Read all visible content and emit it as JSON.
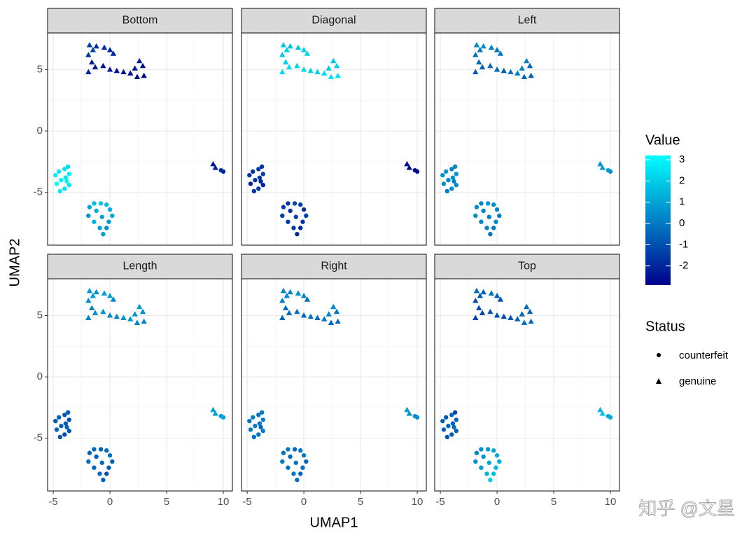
{
  "chart_data": {
    "type": "scatter",
    "x_label": "UMAP1",
    "y_label": "UMAP2",
    "xlim": [
      -5.5,
      10.8
    ],
    "ylim": [
      -9.3,
      8.0
    ],
    "xticks": [
      -5,
      0,
      5,
      10
    ],
    "yticks": [
      -5,
      0,
      5
    ],
    "grid": true,
    "x": [
      -1.8,
      -1.5,
      -1.9,
      -1.2,
      -0.5,
      0,
      0.3,
      -1.6,
      -1.9,
      -1.3,
      -0.6,
      0,
      0.6,
      1.2,
      1.8,
      2.2,
      2.6,
      2.9,
      3.0,
      2.4,
      -4.8,
      -4.5,
      -4.0,
      -3.7,
      -3.6,
      -3.8,
      -3.6,
      -4.0,
      -4.4,
      -4.7,
      -4.3,
      -3.9,
      -1.8,
      -1.4,
      -0.8,
      -0.3,
      0,
      0.2,
      -0.1,
      -0.3,
      -0.6,
      -0.9,
      -1.4,
      -1.9,
      -1.2,
      -0.7,
      9.1,
      9.3,
      9.8,
      10.0
    ],
    "y": [
      7.0,
      6.6,
      6.2,
      6.9,
      6.8,
      6.6,
      6.3,
      5.6,
      4.8,
      5.2,
      5.3,
      5.0,
      4.9,
      4.8,
      4.7,
      5.1,
      5.7,
      5.3,
      4.5,
      4.4,
      -3.6,
      -3.3,
      -3.1,
      -2.9,
      -3.5,
      -4.1,
      -4.4,
      -4.7,
      -4.9,
      -4.3,
      -4.0,
      -3.8,
      -6.2,
      -5.9,
      -5.9,
      -6.0,
      -6.4,
      -6.9,
      -7.4,
      -7.9,
      -8.4,
      -7.9,
      -7.4,
      -6.9,
      -6.5,
      -7.0,
      -2.7,
      -3.0,
      -3.2,
      -3.3
    ],
    "status": [
      "genuine",
      "genuine",
      "genuine",
      "genuine",
      "genuine",
      "genuine",
      "genuine",
      "genuine",
      "genuine",
      "genuine",
      "genuine",
      "genuine",
      "genuine",
      "genuine",
      "genuine",
      "genuine",
      "genuine",
      "genuine",
      "genuine",
      "genuine",
      "counterfeit",
      "counterfeit",
      "counterfeit",
      "counterfeit",
      "counterfeit",
      "counterfeit",
      "counterfeit",
      "counterfeit",
      "counterfeit",
      "counterfeit",
      "counterfeit",
      "counterfeit",
      "counterfeit",
      "counterfeit",
      "counterfeit",
      "counterfeit",
      "counterfeit",
      "counterfeit",
      "counterfeit",
      "counterfeit",
      "counterfeit",
      "counterfeit",
      "counterfeit",
      "counterfeit",
      "counterfeit",
      "counterfeit",
      "genuine",
      "genuine",
      "counterfeit",
      "counterfeit"
    ],
    "facets": [
      {
        "title": "Bottom",
        "values": [
          -1.5,
          -1.3,
          -1.6,
          -1.8,
          -1.7,
          -1.9,
          -2.0,
          -2.1,
          -2.2,
          -2.3,
          -2.4,
          -2.3,
          -2.5,
          -2.4,
          -2.6,
          -2.3,
          -2.2,
          -2.5,
          -2.6,
          -2.7,
          2.8,
          2.6,
          2.5,
          2.4,
          2.9,
          3.0,
          2.7,
          2.6,
          2.8,
          3.1,
          2.9,
          2.7,
          1.0,
          1.5,
          1.8,
          1.6,
          1.3,
          1.2,
          0.8,
          0.6,
          0.9,
          1.1,
          1.4,
          0.7,
          1.2,
          1.0,
          -2.4,
          -2.2,
          -1.9,
          -2.0
        ]
      },
      {
        "title": "Diagonal",
        "values": [
          1.8,
          2.0,
          1.9,
          1.7,
          1.9,
          2.1,
          2.2,
          2.0,
          2.3,
          2.4,
          2.2,
          2.3,
          2.1,
          2.0,
          2.4,
          1.9,
          1.8,
          2.2,
          2.5,
          2.4,
          -1.6,
          -1.8,
          -1.5,
          -1.7,
          -1.4,
          -1.9,
          -2.0,
          -1.6,
          -1.8,
          -2.1,
          -1.7,
          -1.5,
          -1.4,
          -1.6,
          -1.2,
          -1.5,
          -1.8,
          -1.3,
          -1.7,
          -2.0,
          -1.9,
          -1.5,
          -1.6,
          -1.4,
          -1.7,
          -1.3,
          -2.5,
          -2.6,
          -2.8,
          -2.7
        ]
      },
      {
        "title": "Left",
        "values": [
          0.3,
          0.1,
          -0.2,
          0.4,
          0.2,
          -0.1,
          0.0,
          -0.5,
          -0.8,
          -0.6,
          -0.3,
          -0.4,
          -0.7,
          -0.2,
          0.1,
          0.3,
          0.2,
          -0.4,
          -0.6,
          -0.5,
          0.5,
          0.6,
          0.3,
          0.4,
          0.7,
          0.2,
          0.5,
          0.6,
          0.1,
          0.4,
          0.3,
          0.5,
          0.4,
          0.2,
          0.6,
          0.5,
          0.3,
          0.1,
          0.4,
          0.0,
          -0.2,
          0.3,
          0.2,
          0.5,
          0.4,
          0.1,
          0.7,
          0.8,
          0.9,
          0.6
        ]
      },
      {
        "title": "Length",
        "values": [
          0.7,
          0.9,
          0.5,
          0.6,
          0.8,
          1.0,
          0.4,
          0.3,
          0.2,
          0.5,
          0.6,
          0.4,
          0.3,
          0.5,
          0.7,
          0.6,
          0.8,
          0.5,
          0.2,
          0.3,
          -0.8,
          -0.6,
          -0.9,
          -0.7,
          -1.0,
          -0.5,
          -0.8,
          -1.1,
          -0.9,
          -0.6,
          -0.7,
          -0.8,
          -0.5,
          -0.3,
          -0.6,
          -0.4,
          -0.2,
          -0.5,
          -0.7,
          -0.9,
          -0.6,
          -0.4,
          -0.5,
          -0.3,
          -0.6,
          -0.4,
          1.0,
          0.9,
          0.8,
          1.1
        ]
      },
      {
        "title": "Right",
        "values": [
          0.2,
          0.4,
          0.1,
          0.3,
          0.5,
          0.2,
          -0.1,
          -0.3,
          -0.6,
          -0.4,
          -0.2,
          -0.5,
          -0.3,
          -0.4,
          -0.1,
          0.3,
          0.4,
          -0.2,
          -0.3,
          -0.4,
          -0.1,
          0.1,
          -0.2,
          0.0,
          0.2,
          -0.3,
          0.1,
          -0.1,
          -0.2,
          0.0,
          0.1,
          -0.1,
          -0.2,
          0.1,
          -0.3,
          -0.1,
          0.0,
          -0.4,
          -0.2,
          -0.5,
          -0.3,
          -0.1,
          -0.2,
          0.0,
          -0.3,
          -0.1,
          0.8,
          0.7,
          0.6,
          0.5
        ]
      },
      {
        "title": "Top",
        "values": [
          -0.5,
          -0.8,
          -1.0,
          -0.6,
          -0.3,
          -0.7,
          -0.9,
          -1.1,
          -1.3,
          -1.2,
          -0.9,
          -1.0,
          -1.2,
          -0.8,
          -0.7,
          -0.5,
          -0.4,
          -0.6,
          -0.3,
          -0.2,
          -0.6,
          -0.8,
          -0.4,
          -1.2,
          -0.5,
          -0.3,
          -0.6,
          -0.7,
          -0.9,
          -0.5,
          -0.4,
          -0.6,
          0.3,
          0.6,
          0.8,
          1.0,
          1.2,
          1.3,
          1.5,
          1.7,
          1.9,
          1.4,
          0.9,
          0.5,
          0.7,
          1.1,
          1.5,
          1.7,
          1.3,
          1.2
        ]
      }
    ],
    "color_legend": {
      "title": "Value",
      "clim": [
        -2.9,
        3.2
      ],
      "ticks": [
        3,
        2,
        1,
        0,
        -1,
        -2
      ],
      "color_low": "#00008b",
      "color_high": "#00ffff"
    },
    "shape_legend": {
      "title": "Status",
      "labels": [
        "counterfeit",
        "genuine"
      ]
    },
    "watermark": "知乎 @文星"
  }
}
